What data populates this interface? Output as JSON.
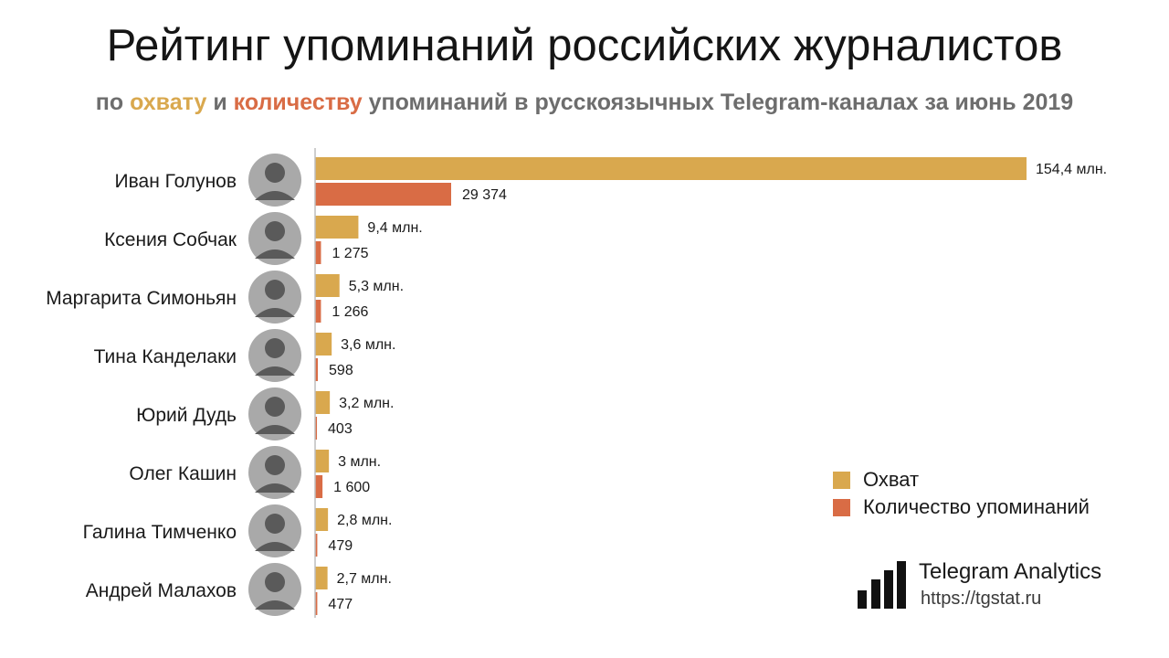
{
  "header": {
    "title": "Рейтинг упоминаний российских журналистов",
    "subtitle_prefix": "по",
    "subtitle_reach": "охвату",
    "subtitle_and": "и",
    "subtitle_count": "количеству",
    "subtitle_rest": "упоминаний в русскоязычных Telegram-каналах за июнь 2019"
  },
  "colors": {
    "reach": "#d9a84e",
    "count": "#d96c45",
    "axis": "#bdbdbd"
  },
  "legend": {
    "reach_label": "Охват",
    "count_label": "Количество упоминаний"
  },
  "brand": {
    "name": "Telegram Analytics",
    "url": "https://tgstat.ru"
  },
  "chart_data": {
    "type": "bar",
    "orientation": "horizontal",
    "title": "Рейтинг упоминаний российских журналистов",
    "subtitle": "по охвату и количеству упоминаний в русскоязычных Telegram-каналах за июнь 2019",
    "categories": [
      "Иван Голунов",
      "Ксения Собчак",
      "Маргарита Симоньян",
      "Тина Канделаки",
      "Юрий Дудь",
      "Олег Кашин",
      "Галина Тимченко",
      "Андрей Малахов"
    ],
    "series": [
      {
        "name": "Охват",
        "values": [
          154.4,
          9.4,
          5.3,
          3.6,
          3.2,
          3.0,
          2.8,
          2.7
        ],
        "labels": [
          "154,4 млн.",
          "9,4 млн.",
          "5,3 млн.",
          "3,6 млн.",
          "3,2 млн.",
          "3 млн.",
          "2,8 млн.",
          "2,7 млн."
        ]
      },
      {
        "name": "Количество упоминаний",
        "values": [
          29374,
          1275,
          1266,
          598,
          403,
          1600,
          479,
          477
        ],
        "labels": [
          "29 374",
          "1 275",
          "1 266",
          "598",
          "403",
          "1 600",
          "479",
          "477"
        ]
      }
    ],
    "legend_position": "right",
    "grid": false
  }
}
